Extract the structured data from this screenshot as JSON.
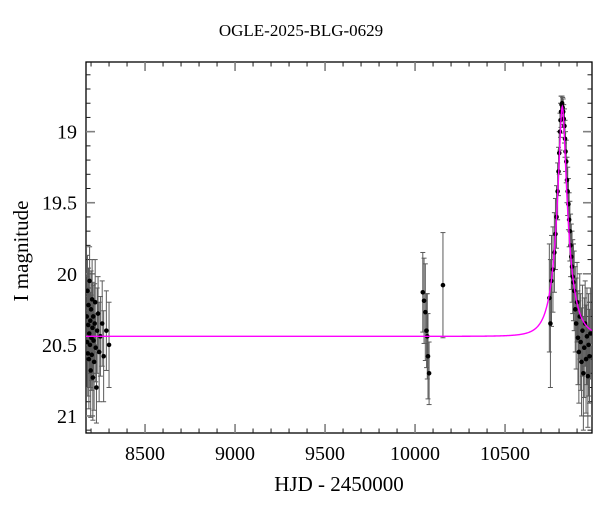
{
  "figure": {
    "title": "OGLE-2025-BLG-0629",
    "xlabel": "HJD - 2450000",
    "ylabel": "I magnitude"
  },
  "chart_data": {
    "type": "scatter",
    "title": "OGLE-2025-BLG-0629",
    "xlabel": "HJD - 2450000",
    "ylabel": "I magnitude",
    "y_axis_inverted": true,
    "xlim": [
      8172,
      10983
    ],
    "ylim_mag": [
      21.12,
      18.51
    ],
    "x_major_ticks": [
      8500,
      9000,
      9500,
      10000,
      10500
    ],
    "x_tick_labels": [
      "8500",
      "9000",
      "9500",
      "10000",
      "10500"
    ],
    "x_minor_step": 100,
    "y_major_ticks": [
      19,
      19.5,
      20,
      20.5,
      21
    ],
    "y_tick_labels": [
      "19",
      "19.5",
      "20",
      "20.5",
      "21"
    ],
    "y_minor_step": 0.1,
    "grid": false,
    "legend": null,
    "colors": {
      "background": "#ffffff",
      "frame": "#000000",
      "major_tick": "#808080",
      "minor_tick": "#1a1a1a",
      "points": "#000000",
      "error_bars": "#5a5a5a",
      "model_curve": "#ff00ff",
      "text": "#000000"
    },
    "model": {
      "type": "paczynski_microlensing",
      "baseline_mag": 20.44,
      "peak_mag": 18.83,
      "t0": 10818,
      "tE": 71,
      "u0": 0.23
    },
    "series": [
      {
        "name": "OGLE I-band photometry",
        "marker": "filled-circle",
        "points_t_mag_err": [
          [
            8176,
            20.3,
            0.28
          ],
          [
            8178,
            20.48,
            0.32
          ],
          [
            8180,
            20.12,
            0.25
          ],
          [
            8182,
            20.56,
            0.3
          ],
          [
            8184,
            20.36,
            0.22
          ],
          [
            8186,
            20.22,
            0.26
          ],
          [
            8188,
            20.6,
            0.35
          ],
          [
            8190,
            20.42,
            0.28
          ],
          [
            8192,
            20.05,
            0.24
          ],
          [
            8194,
            20.5,
            0.3
          ],
          [
            8196,
            20.33,
            0.2
          ],
          [
            8198,
            20.68,
            0.33
          ],
          [
            8200,
            20.25,
            0.27
          ],
          [
            8202,
            20.45,
            0.3
          ],
          [
            8204,
            20.57,
            0.25
          ],
          [
            8206,
            20.18,
            0.28
          ],
          [
            8208,
            20.38,
            0.32
          ],
          [
            8210,
            20.73,
            0.3
          ],
          [
            8212,
            20.3,
            0.22
          ],
          [
            8214,
            20.47,
            0.26
          ],
          [
            8217,
            20.62,
            0.34
          ],
          [
            8220,
            20.35,
            0.28
          ],
          [
            8223,
            20.2,
            0.3
          ],
          [
            8226,
            20.52,
            0.24
          ],
          [
            8230,
            20.8,
            0.25
          ],
          [
            8234,
            20.4,
            0.3
          ],
          [
            8239,
            20.28,
            0.26
          ],
          [
            8245,
            20.55,
            0.35
          ],
          [
            8252,
            20.44,
            0.28
          ],
          [
            8262,
            20.35,
            0.3
          ],
          [
            8270,
            20.58,
            0.32
          ],
          [
            8285,
            20.4,
            0.28
          ],
          [
            8300,
            20.5,
            0.3
          ],
          [
            10043,
            20.13,
            0.28
          ],
          [
            10050,
            20.19,
            0.3
          ],
          [
            10057,
            20.27,
            0.34
          ],
          [
            10064,
            20.4,
            0.26
          ],
          [
            10068,
            20.44,
            0.3
          ],
          [
            10072,
            20.58,
            0.3
          ],
          [
            10078,
            20.7,
            0.22
          ],
          [
            10155,
            20.08,
            0.37
          ],
          [
            10746,
            20.17,
            0.38
          ],
          [
            10752,
            20.35,
            0.45
          ],
          [
            10758,
            20.05,
            0.32
          ],
          [
            10766,
            19.97,
            0.3
          ],
          [
            10774,
            19.85,
            0.28
          ],
          [
            10780,
            19.72,
            0.25
          ],
          [
            10786,
            19.6,
            0.22
          ],
          [
            10792,
            19.42,
            0.2
          ],
          [
            10797,
            19.28,
            0.17
          ],
          [
            10801,
            19.15,
            0.15
          ],
          [
            10805,
            19.0,
            0.13
          ],
          [
            10808,
            18.92,
            0.12
          ],
          [
            10811,
            18.86,
            0.11
          ],
          [
            10814,
            18.81,
            0.06
          ],
          [
            10817,
            18.8,
            0.05
          ],
          [
            10820,
            18.83,
            0.07
          ],
          [
            10823,
            18.86,
            0.09
          ],
          [
            10826,
            18.91,
            0.1
          ],
          [
            10830,
            18.96,
            0.12
          ],
          [
            10833,
            19.05,
            0.13
          ],
          [
            10836,
            19.14,
            0.14
          ],
          [
            10840,
            19.21,
            0.15
          ],
          [
            10844,
            19.34,
            0.16
          ],
          [
            10848,
            19.42,
            0.17
          ],
          [
            10852,
            19.51,
            0.18
          ],
          [
            10856,
            19.62,
            0.19
          ],
          [
            10860,
            19.7,
            0.21
          ],
          [
            10864,
            19.8,
            0.22
          ],
          [
            10868,
            19.88,
            0.23
          ],
          [
            10872,
            19.95,
            0.25
          ],
          [
            10876,
            20.02,
            0.26
          ],
          [
            10880,
            20.06,
            0.27
          ],
          [
            10884,
            20.12,
            0.28
          ],
          [
            10890,
            20.25,
            0.3
          ],
          [
            10895,
            20.35,
            0.32
          ],
          [
            10900,
            20.2,
            0.28
          ],
          [
            10905,
            20.45,
            0.33
          ],
          [
            10910,
            20.55,
            0.36
          ],
          [
            10915,
            20.3,
            0.3
          ],
          [
            10920,
            20.48,
            0.34
          ],
          [
            10925,
            20.62,
            0.38
          ],
          [
            10930,
            20.4,
            0.32
          ],
          [
            10935,
            20.7,
            0.4
          ],
          [
            10940,
            20.52,
            0.35
          ],
          [
            10945,
            20.35,
            0.3
          ],
          [
            10950,
            20.6,
            0.38
          ],
          [
            10955,
            20.44,
            0.34
          ],
          [
            10960,
            20.72,
            0.36
          ],
          [
            10964,
            20.5,
            0.36
          ],
          [
            10969,
            20.58,
            0.33
          ],
          [
            10974,
            20.42,
            0.32
          ]
        ]
      }
    ]
  }
}
